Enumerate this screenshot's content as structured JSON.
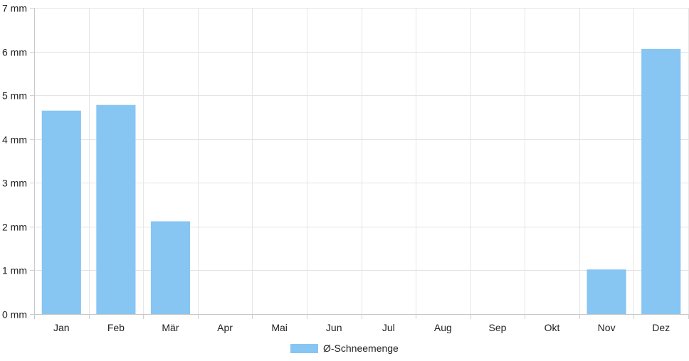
{
  "chart_data": {
    "type": "bar",
    "categories": [
      "Jan",
      "Feb",
      "Mär",
      "Apr",
      "Mai",
      "Jun",
      "Jul",
      "Aug",
      "Sep",
      "Okt",
      "Nov",
      "Dez"
    ],
    "series": [
      {
        "name": "Ø-Schneemenge",
        "values": [
          4.65,
          4.78,
          2.12,
          0,
          0,
          0,
          0,
          0,
          0,
          0,
          1.02,
          6.06
        ],
        "color": "#87c5f3"
      }
    ],
    "yticks": [
      "0 mm",
      "1 mm",
      "2 mm",
      "3 mm",
      "4 mm",
      "5 mm",
      "6 mm",
      "7 mm"
    ],
    "ylim": [
      0,
      7
    ],
    "grid": true,
    "legend_position": "bottom"
  }
}
